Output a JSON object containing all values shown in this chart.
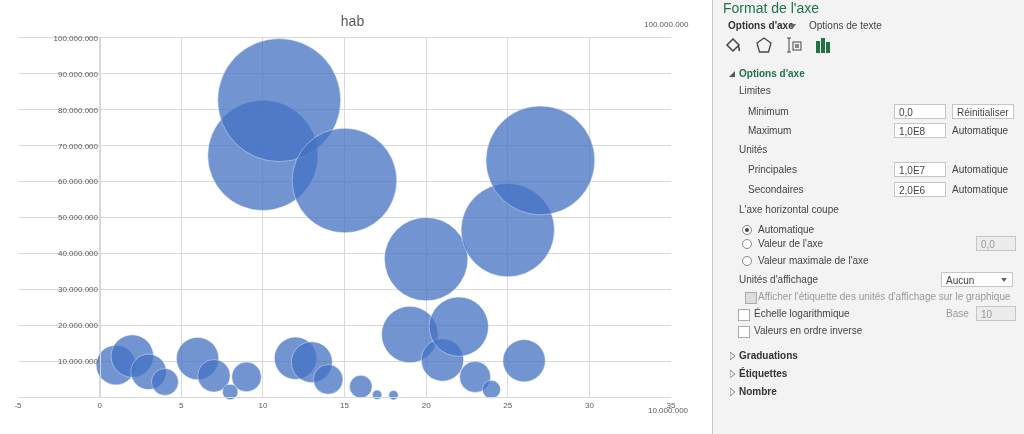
{
  "chart_data": [
    {
      "type": "bubble",
      "title": "hab",
      "x": [
        1,
        2,
        3,
        4,
        6,
        7,
        8,
        9,
        10,
        11,
        12,
        13,
        14,
        15,
        16,
        17,
        18,
        19,
        20,
        21,
        22,
        23,
        24,
        25,
        26,
        27
      ],
      "values": [
        8900000,
        11400000,
        7000000,
        4200000,
        10700000,
        5900000,
        1400000,
        5600000,
        67300000,
        82700000,
        10800000,
        9700000,
        4900000,
        60300000,
        2900000,
        600000,
        500000,
        17400000,
        38400000,
        10300000,
        19600000,
        5600000,
        2100000,
        46500000,
        10100000,
        65900000
      ],
      "sizes": [
        0.104,
        0.119,
        0.083,
        0.048,
        0.119,
        0.07,
        0.016,
        0.058,
        0.804,
        1,
        0.119,
        0.111,
        0.058,
        0.723,
        0.034,
        0.006,
        0.006,
        0.211,
        0.46,
        0.119,
        0.233,
        0.064,
        0.022,
        0.576,
        0.119,
        0.783
      ],
      "color": "#4472c4",
      "xlim": [
        -5,
        35
      ],
      "xticks": [
        -5,
        0,
        5,
        10,
        15,
        20,
        25,
        30,
        35
      ],
      "ylim": [
        0,
        100000000
      ],
      "yticks": [
        {
          "value": 10000000,
          "label": "10.000.000"
        },
        {
          "value": 20000000,
          "label": "20.000.000"
        },
        {
          "value": 30000000,
          "label": "30.000.000"
        },
        {
          "value": 40000000,
          "label": "40.000.000"
        },
        {
          "value": 50000000,
          "label": "50.000.000"
        },
        {
          "value": 60000000,
          "label": "60.000.000"
        },
        {
          "value": 70000000,
          "label": "70.000.000"
        },
        {
          "value": 80000000,
          "label": "80.000.000"
        },
        {
          "value": 90000000,
          "label": "90.000.000"
        },
        {
          "value": 100000000,
          "label": "100.000.000"
        }
      ],
      "grid": true,
      "legend": false,
      "marker": "circle",
      "annotations": [
        "100.000.000",
        "10.000.000"
      ]
    },
    {
      "type": "other",
      "title": "Format de l'axe",
      "annotations": [
        "Options d'axe",
        "Options de texte",
        "Options d'axe",
        "Limites",
        "Minimum",
        "0,0",
        "Réinitialiser",
        "Maximum",
        "1,0E8",
        "Automatique",
        "Unités",
        "Principales",
        "1,0E7",
        "Automatique",
        "Secondaires",
        "2,0E6",
        "Automatique",
        "L'axe horizontal coupe",
        "Automatique",
        "Valeur de l'axe",
        "0,0",
        "Valeur maximale de l'axe",
        "Unités d'affichage",
        "Aucun",
        "Afficher l'étiquette des unités d'affichage sur le graphique",
        "Échelle logarithmique",
        "Base",
        "10",
        "Valeurs en ordre inverse",
        "Graduations",
        "Étiquettes",
        "Nombre"
      ]
    }
  ]
}
